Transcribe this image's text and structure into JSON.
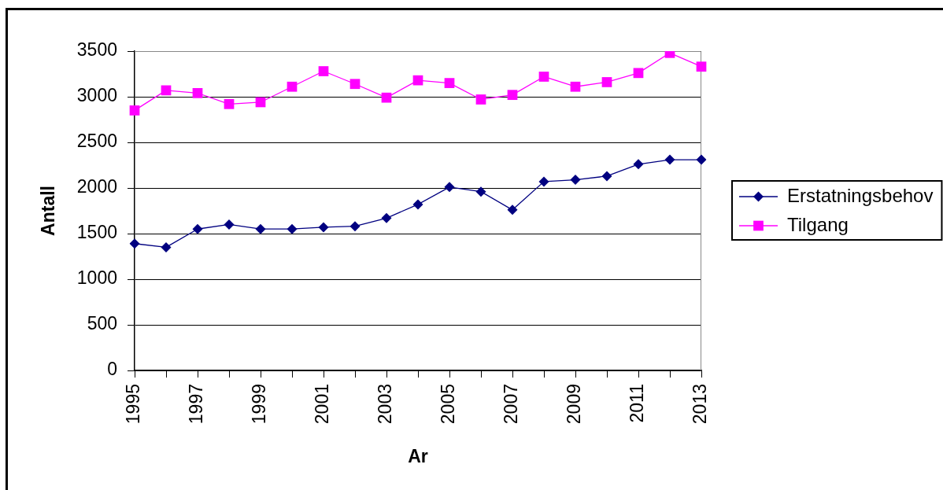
{
  "chart_data": {
    "type": "line",
    "xlabel": "Ar",
    "ylabel": "Antall",
    "categories": [
      "1995",
      null,
      "1997",
      null,
      "1999",
      null,
      "2001",
      null,
      "2003",
      null,
      "2005",
      null,
      "2007",
      null,
      "2009",
      null,
      "2011",
      null,
      "2013"
    ],
    "series": [
      {
        "name": "Erstatningsbehov",
        "color": "#000080",
        "marker": "diamond",
        "values": [
          1390,
          1350,
          1550,
          1600,
          1550,
          1550,
          1570,
          1580,
          1670,
          1820,
          2010,
          1960,
          1760,
          2070,
          2090,
          2130,
          2260,
          2310,
          2310
        ]
      },
      {
        "name": "Tilgang",
        "color": "#ff00ff",
        "marker": "square",
        "values": [
          2850,
          3070,
          3040,
          2920,
          2940,
          3110,
          3280,
          3140,
          2990,
          3180,
          3150,
          2970,
          3020,
          3220,
          3110,
          3160,
          3260,
          3480,
          3330
        ]
      }
    ],
    "ylim": [
      0,
      3500
    ],
    "yticks": [
      0,
      500,
      1000,
      1500,
      2000,
      2500,
      3000,
      3500
    ],
    "grid": "y",
    "legend": "right"
  }
}
